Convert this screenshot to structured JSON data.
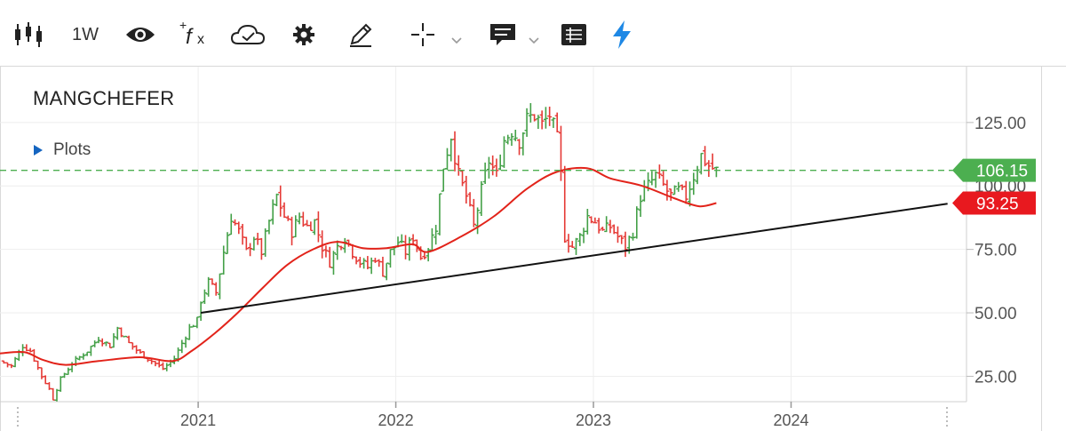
{
  "toolbar": {
    "items": [
      {
        "name": "candlestick-chart-icon"
      },
      {
        "name": "interval",
        "label": "1W"
      },
      {
        "name": "eye-icon"
      },
      {
        "name": "fx-indicator-icon"
      },
      {
        "name": "cloud-icon"
      },
      {
        "name": "gear-icon"
      },
      {
        "name": "pencil-icon"
      },
      {
        "name": "crosshair-icon"
      },
      {
        "name": "comment-icon"
      },
      {
        "name": "table-icon"
      },
      {
        "name": "lightning-icon"
      }
    ]
  },
  "header": {
    "symbol": "MANGCHEFER",
    "plots_label": "Plots"
  },
  "colors": {
    "up": "#43a047",
    "down": "#e53935",
    "ma": "#e2231a",
    "trend": "#111111",
    "last_price_badge": "#4caf50",
    "ma_badge": "#e8191f"
  },
  "chart_data": {
    "type": "ohlc",
    "interval": "1W",
    "y_ticks": [
      "25.00",
      "50.00",
      "75.00",
      "125.00"
    ],
    "x_ticks": [
      "2021",
      "2022",
      "2023",
      "2024"
    ],
    "ylim": [
      15,
      147
    ],
    "xlim": [
      "2020-01-01",
      "2024-11-20"
    ],
    "last_price": {
      "value": 106.15,
      "label": "106.15"
    },
    "ma_value": {
      "value": 93.25,
      "label": "93.25"
    },
    "hidden_tick_behind_badge": "100.00",
    "price_path": [
      [
        "2020-01-01",
        31
      ],
      [
        "2020-01-22",
        29
      ],
      [
        "2020-02-12",
        37
      ],
      [
        "2020-02-26",
        35
      ],
      [
        "2020-03-18",
        25
      ],
      [
        "2020-04-01",
        20
      ],
      [
        "2020-04-08",
        16
      ],
      [
        "2020-04-22",
        24
      ],
      [
        "2020-05-13",
        30
      ],
      [
        "2020-06-10",
        35
      ],
      [
        "2020-07-01",
        40
      ],
      [
        "2020-07-22",
        37
      ],
      [
        "2020-08-05",
        44
      ],
      [
        "2020-08-26",
        38
      ],
      [
        "2020-09-16",
        34
      ],
      [
        "2020-10-07",
        31
      ],
      [
        "2020-10-28",
        28
      ],
      [
        "2020-11-18",
        32
      ],
      [
        "2020-12-02",
        38
      ],
      [
        "2020-12-16",
        44
      ],
      [
        "2020-12-30",
        47
      ],
      [
        "2021-01-06",
        55
      ],
      [
        "2021-01-20",
        62
      ],
      [
        "2021-02-03",
        58
      ],
      [
        "2021-02-17",
        74
      ],
      [
        "2021-03-03",
        88
      ],
      [
        "2021-03-17",
        82
      ],
      [
        "2021-03-31",
        74
      ],
      [
        "2021-04-14",
        80
      ],
      [
        "2021-04-28",
        74
      ],
      [
        "2021-05-12",
        86
      ],
      [
        "2021-05-26",
        96
      ],
      [
        "2021-06-09",
        88
      ],
      [
        "2021-06-23",
        82
      ],
      [
        "2021-07-07",
        88
      ],
      [
        "2021-07-21",
        84
      ],
      [
        "2021-08-04",
        86
      ],
      [
        "2021-08-18",
        76
      ],
      [
        "2021-09-01",
        70
      ],
      [
        "2021-09-15",
        76
      ],
      [
        "2021-09-29",
        80
      ],
      [
        "2021-10-13",
        74
      ],
      [
        "2021-10-27",
        70
      ],
      [
        "2021-11-10",
        68
      ],
      [
        "2021-11-24",
        72
      ],
      [
        "2021-12-08",
        66
      ],
      [
        "2021-12-22",
        74
      ],
      [
        "2022-01-05",
        78
      ],
      [
        "2022-01-19",
        74
      ],
      [
        "2022-02-02",
        80
      ],
      [
        "2022-02-16",
        72
      ],
      [
        "2022-03-02",
        76
      ],
      [
        "2022-03-16",
        84
      ],
      [
        "2022-03-30",
        108
      ],
      [
        "2022-04-13",
        120
      ],
      [
        "2022-04-27",
        104
      ],
      [
        "2022-05-11",
        96
      ],
      [
        "2022-05-25",
        84
      ],
      [
        "2022-06-08",
        98
      ],
      [
        "2022-06-22",
        110
      ],
      [
        "2022-07-06",
        104
      ],
      [
        "2022-07-20",
        118
      ],
      [
        "2022-08-03",
        122
      ],
      [
        "2022-08-17",
        118
      ],
      [
        "2022-08-31",
        126
      ],
      [
        "2022-09-14",
        128
      ],
      [
        "2022-09-28",
        124
      ],
      [
        "2022-10-12",
        128
      ],
      [
        "2022-10-26",
        118
      ],
      [
        "2022-11-02",
        104
      ],
      [
        "2022-11-09",
        80
      ],
      [
        "2022-11-23",
        76
      ],
      [
        "2022-12-07",
        80
      ],
      [
        "2022-12-21",
        88
      ],
      [
        "2023-01-04",
        86
      ],
      [
        "2023-01-18",
        82
      ],
      [
        "2023-02-01",
        84
      ],
      [
        "2023-02-15",
        80
      ],
      [
        "2023-03-01",
        76
      ],
      [
        "2023-03-15",
        82
      ],
      [
        "2023-03-29",
        96
      ],
      [
        "2023-04-12",
        100
      ],
      [
        "2023-04-26",
        104
      ],
      [
        "2023-05-10",
        100
      ],
      [
        "2023-05-24",
        96
      ],
      [
        "2023-06-07",
        98
      ],
      [
        "2023-06-21",
        96
      ],
      [
        "2023-07-05",
        104
      ],
      [
        "2023-07-19",
        112
      ],
      [
        "2023-08-02",
        108
      ],
      [
        "2023-08-16",
        106
      ]
    ],
    "moving_average": [
      [
        "2020-01-01",
        34
      ],
      [
        "2020-02-15",
        34.5
      ],
      [
        "2020-03-20",
        31.5
      ],
      [
        "2020-05-01",
        29.5
      ],
      [
        "2020-07-01",
        31
      ],
      [
        "2020-09-15",
        32.5
      ],
      [
        "2020-11-15",
        31
      ],
      [
        "2020-12-20",
        35
      ],
      [
        "2021-02-01",
        42
      ],
      [
        "2021-03-15",
        50
      ],
      [
        "2021-05-01",
        60
      ],
      [
        "2021-06-15",
        69
      ],
      [
        "2021-08-01",
        75
      ],
      [
        "2021-09-15",
        78
      ],
      [
        "2021-11-01",
        75.5
      ],
      [
        "2021-12-15",
        75.5
      ],
      [
        "2022-02-01",
        77
      ],
      [
        "2022-03-01",
        74
      ],
      [
        "2022-05-01",
        80
      ],
      [
        "2022-07-01",
        88
      ],
      [
        "2022-09-01",
        99
      ],
      [
        "2022-10-25",
        105.5
      ],
      [
        "2022-12-20",
        107
      ],
      [
        "2023-02-01",
        103
      ],
      [
        "2023-04-01",
        100
      ],
      [
        "2023-06-01",
        95
      ],
      [
        "2023-07-15",
        92
      ],
      [
        "2023-08-16",
        93.25
      ]
    ],
    "trendline": [
      [
        "2021-01-06",
        50
      ],
      [
        "2024-10-16",
        93
      ]
    ]
  }
}
